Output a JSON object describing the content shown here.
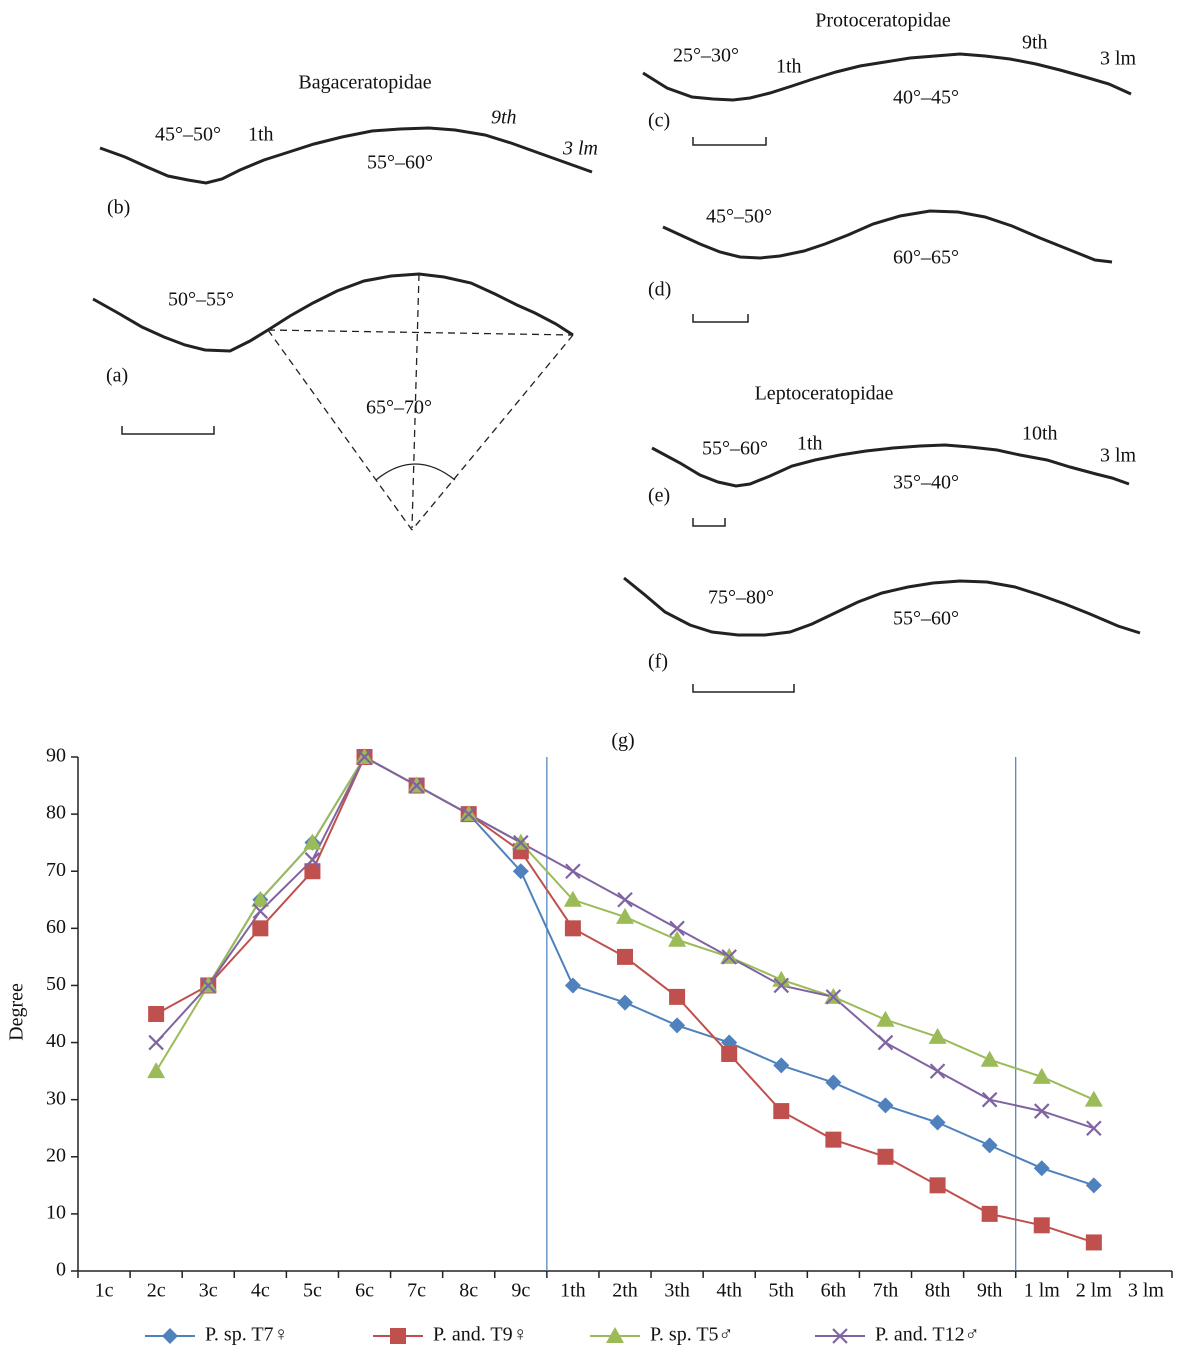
{
  "diagrams": {
    "bagaceratopidae": {
      "title": "Bagaceratopidae",
      "b": {
        "label": "(b)",
        "front_angle": "45°–50°",
        "first": "1th",
        "ninth": "9th",
        "end": "3 lm",
        "back_angle": "55°–60°"
      },
      "a": {
        "label": "(a)",
        "front_angle": "50°–55°",
        "arc_angle": "65°–70°"
      }
    },
    "protoceratopidae": {
      "title": "Protoceratopidae",
      "c": {
        "label": "(c)",
        "front_angle": "25°–30°",
        "first": "1th",
        "ninth": "9th",
        "end": "3 lm",
        "back_angle": "40°–45°"
      },
      "d": {
        "label": "(d)",
        "front_angle": "45°–50°",
        "back_angle": "60°–65°"
      }
    },
    "leptoceratopidae": {
      "title": "Leptoceratopidae",
      "e": {
        "label": "(e)",
        "front_angle": "55°–60°",
        "first": "1th",
        "tenth": "10th",
        "end": "3 lm",
        "back_angle": "35°–40°"
      },
      "f": {
        "label": "(f)",
        "front_angle": "75°–80°",
        "back_angle": "55°–60°"
      }
    }
  },
  "chart_data": {
    "type": "line",
    "label": "(g)",
    "y_label": "Degree",
    "categories": [
      "1c",
      "2c",
      "3c",
      "4c",
      "5c",
      "6c",
      "7c",
      "8c",
      "9c",
      "1th",
      "2th",
      "3th",
      "4th",
      "5th",
      "6th",
      "7th",
      "8th",
      "9th",
      "1 lm",
      "2 lm",
      "3 lm"
    ],
    "ylim": [
      0,
      90
    ],
    "yticks": [
      0,
      10,
      20,
      30,
      40,
      50,
      60,
      70,
      80,
      90
    ],
    "series": [
      {
        "name": "P. sp. T7♀",
        "color": "#4f81bd",
        "marker": "diamond",
        "values": [
          null,
          null,
          50,
          65,
          75,
          90,
          85,
          80,
          70,
          50,
          47,
          43,
          40,
          36,
          33,
          29,
          26,
          22,
          18,
          15,
          null
        ]
      },
      {
        "name": "P. and. T9♀",
        "color": "#c0504d",
        "marker": "square",
        "values": [
          null,
          45,
          50,
          60,
          70,
          90,
          85,
          80,
          73.5,
          60,
          55,
          48,
          38,
          28,
          23,
          20,
          15,
          10,
          8,
          5,
          null
        ]
      },
      {
        "name": "P. sp. T5♂",
        "color": "#9bbb59",
        "marker": "triangle",
        "values": [
          null,
          35,
          50,
          65,
          75,
          90,
          85,
          80,
          75,
          65,
          62,
          58,
          55,
          51,
          48,
          44,
          41,
          37,
          34,
          30,
          null
        ]
      },
      {
        "name": "P. and. T12♂",
        "color": "#8064a2",
        "marker": "cross",
        "values": [
          null,
          40,
          50,
          63,
          72,
          90,
          85,
          80,
          75,
          70,
          65,
          60,
          55,
          50,
          48,
          40,
          35,
          30,
          28,
          25,
          null
        ]
      }
    ]
  }
}
